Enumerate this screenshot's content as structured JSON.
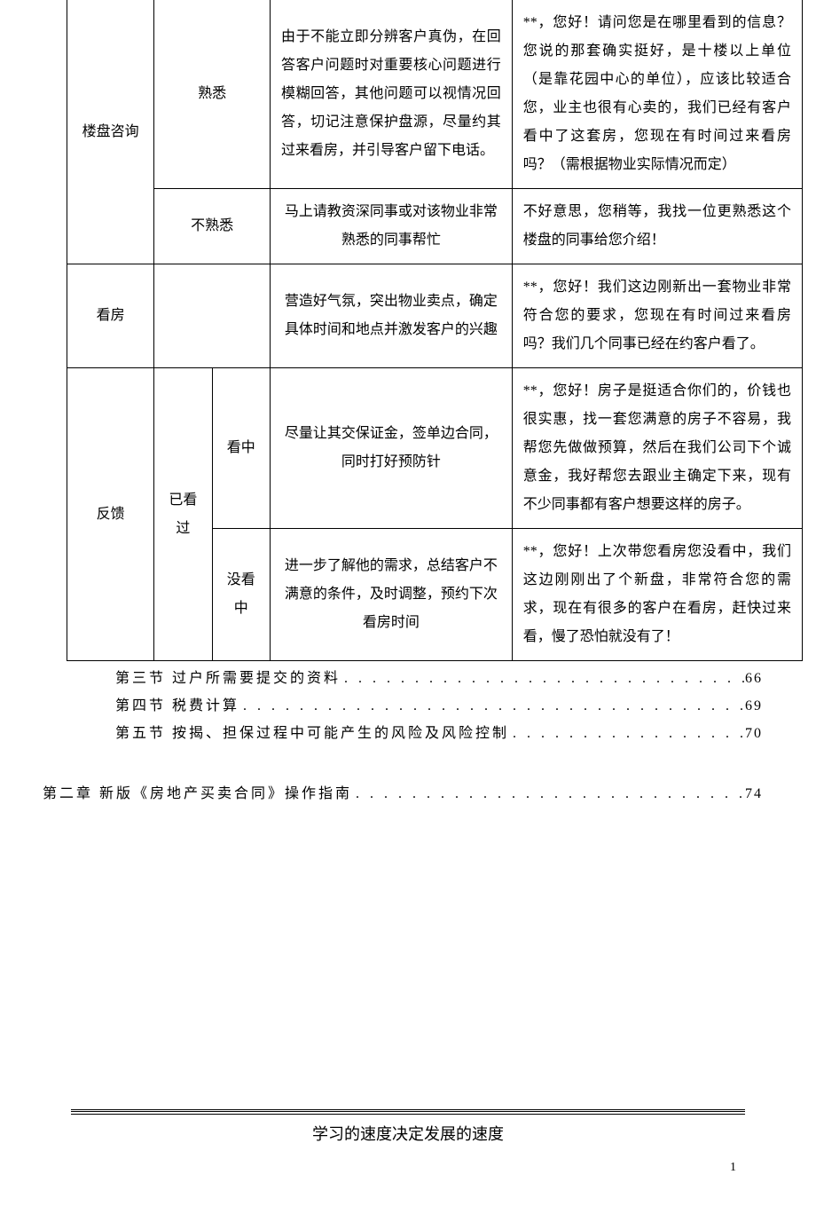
{
  "table": {
    "rows": [
      {
        "c1": "楼盘咨询",
        "c2_a": "熟悉",
        "c4_a": "由于不能立即分辨客户真伪，在回答客户问题时对重要核心问题进行模糊回答，其他问题可以视情况回答，切记注意保护盘源，尽量约其过来看房，并引导客户留下电话。",
        "c5_a": "**，您好！请问您是在哪里看到的信息？您说的那套确实挺好，是十楼以上单位（是靠花园中心的单位），应该比较适合您，业主也很有心卖的，我们已经有客户看中了这套房，您现在有时间过来看房吗？（需根据物业实际情况而定）",
        "c2_b": "不熟悉",
        "c4_b": "马上请教资深同事或对该物业非常熟悉的同事帮忙",
        "c5_b": "不好意思，您稍等，我找一位更熟悉这个楼盘的同事给您介绍！"
      },
      {
        "c1": "看房",
        "c4": "营造好气氛，突出物业卖点，确定具体时间和地点并激发客户的兴趣",
        "c5": "**，您好！我们这边刚新出一套物业非常符合您的要求，您现在有时间过来看房吗？我们几个同事已经在约客户看了。"
      },
      {
        "c1": "反馈",
        "c2": "已看过",
        "c3_a": "看中",
        "c4_a": "尽量让其交保证金，签单边合同，同时打好预防针",
        "c5_a": "**，您好！房子是挺适合你们的，价钱也很实惠，找一套您满意的房子不容易，我帮您先做做预算，然后在我们公司下个诚意金，我好帮您去跟业主确定下来，现有不少同事都有客户想要这样的房子。",
        "c3_b": "没看中",
        "c4_b": "进一步了解他的需求，总结客户不满意的条件，及时调整，预约下次看房时间",
        "c5_b": "**，您好！上次带您看房您没看中，我们这边刚刚出了个新盘，非常符合您的需求，现在有很多的客户在看房，赶快过来看，慢了恐怕就没有了！"
      }
    ]
  },
  "toc": {
    "items": [
      {
        "label": "第三节  过户所需要提交的资料",
        "page": "66"
      },
      {
        "label": "第四节  税费计算",
        "page": "69"
      },
      {
        "label": "第五节  按揭、担保过程中可能产生的风险及风险控制",
        "page": "70"
      }
    ],
    "chapter": {
      "label": "第二章  新版《房地产买卖合同》操作指南",
      "page": "74"
    }
  },
  "footer": {
    "motto": "学习的速度决定发展的速度",
    "page_number": "1"
  },
  "dots": ". . . . . . . . . . . . . . . . . . . . . . . . . . . . . . . . . . . . . . . . . . . . . . . . . . . . . . . . . . . . . . . . . . . . . . . . . . . . . . . ."
}
